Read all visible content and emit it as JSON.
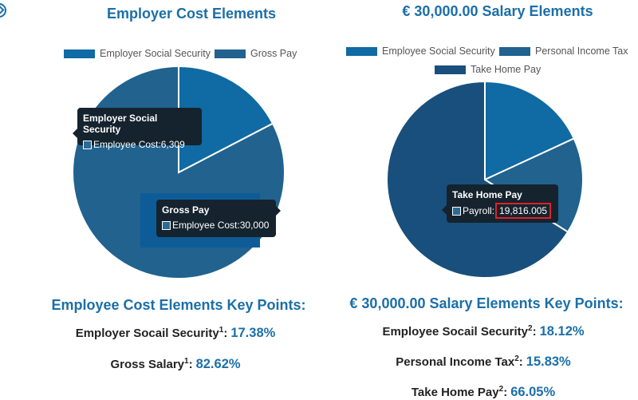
{
  "colors": {
    "accent": "#1b6fa8",
    "slice_a": "#106aa3",
    "slice_b": "#21628f",
    "slice_c": "#194f7c",
    "tooltip_bg": "#15232e",
    "highlight": "#e0202a"
  },
  "icons": {
    "corner": "circle-chevron-icon"
  },
  "left": {
    "key_points": {
      "heading": "Employee Cost Elements Key Points:",
      "items": [
        {
          "label": "Employer Socail Security",
          "sup": "1",
          "colon": ":",
          "value": "17.38%"
        },
        {
          "label": "Gross Salary",
          "sup": "1",
          "colon": ":",
          "value": "82.62%"
        }
      ]
    }
  },
  "right": {
    "key_points": {
      "heading": "€ 30,000.00 Salary Elements Key Points:",
      "items": [
        {
          "label": "Employee Socail Security",
          "sup": "2",
          "colon": ":",
          "value": "18.12%"
        },
        {
          "label": "Personal Income Tax",
          "sup": "2",
          "colon": ":",
          "value": "15.83%"
        },
        {
          "label": "Take Home Pay",
          "sup": "2",
          "colon": ":",
          "value": "66.05%"
        }
      ]
    }
  },
  "chart_data": [
    {
      "type": "pie",
      "title": "Employer Cost Elements",
      "categories": [
        "Employer Social Security",
        "Gross Pay"
      ],
      "values": [
        6309,
        30000
      ],
      "legend": "top",
      "colors": [
        "#106aa3",
        "#21628f"
      ],
      "tooltips": [
        {
          "title": "Employer Social Security",
          "label": "Employee Cost",
          "value": "6,309"
        },
        {
          "title": "Gross Pay",
          "label": "Employee Cost",
          "value": "30,000"
        }
      ]
    },
    {
      "type": "pie",
      "title": "€ 30,000.00 Salary Elements",
      "categories": [
        "Employee Social Security",
        "Personal Income Tax",
        "Take Home Pay"
      ],
      "values": [
        18.12,
        15.83,
        66.05
      ],
      "legend": "top",
      "colors": [
        "#106aa3",
        "#21628f",
        "#194f7c"
      ],
      "tooltips": [
        {
          "title": "Take Home Pay",
          "label": "Payroll",
          "value": "19,816.005"
        }
      ]
    }
  ]
}
